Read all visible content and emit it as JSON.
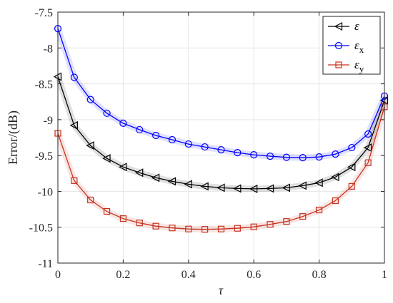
{
  "chart_data": {
    "type": "line",
    "xlabel": "τ",
    "ylabel": "Error/(dB)",
    "xlim": [
      0,
      1
    ],
    "ylim": [
      -11,
      -7.5
    ],
    "xticks": [
      0,
      0.2,
      0.4,
      0.6,
      0.8,
      1
    ],
    "xtick_labels": [
      "0",
      "0.2",
      "0.4",
      "0.6",
      "0.8",
      "1"
    ],
    "yticks": [
      -11,
      -10.5,
      -10,
      -9.5,
      -9,
      -8.5,
      -8,
      -7.5
    ],
    "ytick_labels": [
      "-11",
      "-10.5",
      "-10",
      "-9.5",
      "-9",
      "-8.5",
      "-8",
      "-7.5"
    ],
    "grid": true,
    "legend_position": "top-right",
    "x": [
      0,
      0.05,
      0.1,
      0.15,
      0.2,
      0.25,
      0.3,
      0.35,
      0.4,
      0.45,
      0.5,
      0.55,
      0.6,
      0.65,
      0.7,
      0.75,
      0.8,
      0.85,
      0.9,
      0.95,
      1
    ],
    "series": [
      {
        "name": "ε",
        "name_sub": "",
        "color": "#000000",
        "marker": "triangle-left",
        "values": [
          -8.4,
          -9.08,
          -9.36,
          -9.54,
          -9.66,
          -9.74,
          -9.81,
          -9.86,
          -9.9,
          -9.93,
          -9.95,
          -9.96,
          -9.965,
          -9.96,
          -9.95,
          -9.92,
          -9.88,
          -9.8,
          -9.66,
          -9.39,
          -8.73
        ]
      },
      {
        "name": "ε",
        "name_sub": "x",
        "color": "#0000ff",
        "marker": "circle",
        "values": [
          -7.73,
          -8.41,
          -8.72,
          -8.91,
          -9.05,
          -9.14,
          -9.22,
          -9.28,
          -9.34,
          -9.38,
          -9.42,
          -9.46,
          -9.49,
          -9.51,
          -9.525,
          -9.53,
          -9.52,
          -9.48,
          -9.39,
          -9.2,
          -8.67
        ]
      },
      {
        "name": "ε",
        "name_sub": "y",
        "color": "#c8321e",
        "marker": "square",
        "values": [
          -9.19,
          -9.85,
          -10.12,
          -10.28,
          -10.38,
          -10.44,
          -10.485,
          -10.51,
          -10.525,
          -10.53,
          -10.525,
          -10.515,
          -10.495,
          -10.46,
          -10.42,
          -10.35,
          -10.26,
          -10.13,
          -9.93,
          -9.6,
          -8.82
        ]
      }
    ]
  }
}
